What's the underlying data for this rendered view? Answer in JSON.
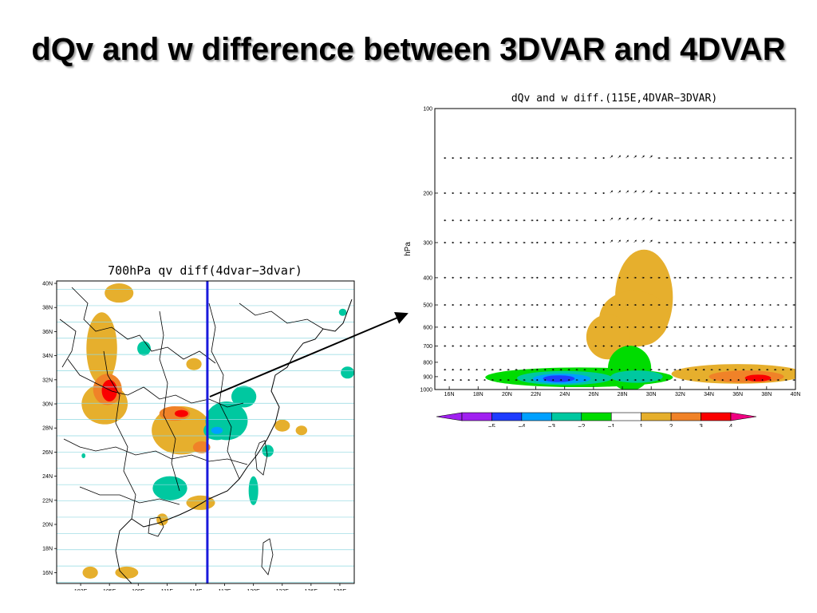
{
  "slide": {
    "title": "dQv and w difference between 3DVAR and 4DVAR"
  },
  "colors": {
    "purple": "#a020f0",
    "blue": "#1e3cff",
    "cyan": "#00a0ff",
    "teal": "#00c8a0",
    "green": "#00dc00",
    "gold": "#e6af2d",
    "orange": "#f08228",
    "red": "#fa0000",
    "pink": "#f00082",
    "grid": "#8fd8e0",
    "section_line": "#1a1adc"
  },
  "chart_data": [
    {
      "type": "heatmap",
      "title": "700hPa qv diff(4dvar−3dvar)",
      "xlabel": "",
      "ylabel": "",
      "x_ticks": [
        "102E",
        "105E",
        "108E",
        "111E",
        "114E",
        "117E",
        "120E",
        "123E",
        "126E",
        "129E"
      ],
      "x_values": [
        102,
        105,
        108,
        111,
        114,
        117,
        120,
        123,
        126,
        129
      ],
      "y_ticks": [
        "40N",
        "38N",
        "36N",
        "34N",
        "32N",
        "30N",
        "28N",
        "26N",
        "24N",
        "22N",
        "20N",
        "18N",
        "16N"
      ],
      "y_values": [
        40,
        38,
        36,
        34,
        32,
        30,
        28,
        26,
        24,
        22,
        20,
        18,
        16
      ],
      "xlim": [
        99.5,
        130.5
      ],
      "ylim": [
        15.1,
        40.2
      ],
      "section_line": {
        "lon": 115.2
      },
      "regions": [
        {
          "level": 2,
          "lon": 104.2,
          "lat": 34.6,
          "rx": 1.6,
          "ry": 3.0
        },
        {
          "level": 2,
          "lon": 104.5,
          "lat": 30.0,
          "rx": 2.4,
          "ry": 1.7
        },
        {
          "level": 3,
          "lon": 104.8,
          "lat": 31.2,
          "rx": 1.5,
          "ry": 1.3
        },
        {
          "level": 4,
          "lon": 105.0,
          "lat": 31.1,
          "rx": 0.8,
          "ry": 0.9
        },
        {
          "level": -1,
          "lon": 108.6,
          "lat": 34.6,
          "rx": 0.7,
          "ry": 0.6
        },
        {
          "level": 2,
          "lon": 113.8,
          "lat": 33.3,
          "rx": 0.8,
          "ry": 0.5
        },
        {
          "level": 2,
          "lon": 112.5,
          "lat": 27.8,
          "rx": 3.1,
          "ry": 2.0
        },
        {
          "level": 3,
          "lon": 111.8,
          "lat": 29.2,
          "rx": 1.6,
          "ry": 0.6
        },
        {
          "level": 4,
          "lon": 112.5,
          "lat": 29.2,
          "rx": 0.7,
          "ry": 0.3
        },
        {
          "level": 3,
          "lon": 114.6,
          "lat": 26.4,
          "rx": 0.9,
          "ry": 0.5
        },
        {
          "level": -1,
          "lon": 117.2,
          "lat": 28.6,
          "rx": 2.2,
          "ry": 1.6
        },
        {
          "level": -2,
          "lon": 116.2,
          "lat": 27.8,
          "rx": 1.4,
          "ry": 0.8
        },
        {
          "level": -3,
          "lon": 116.2,
          "lat": 27.8,
          "rx": 0.6,
          "ry": 0.3
        },
        {
          "level": -1,
          "lon": 119.0,
          "lat": 30.6,
          "rx": 1.3,
          "ry": 0.9
        },
        {
          "level": -1,
          "lon": 120.0,
          "lat": 22.8,
          "rx": 0.5,
          "ry": 1.2
        },
        {
          "level": -1,
          "lon": 121.5,
          "lat": 26.1,
          "rx": 0.6,
          "ry": 0.5
        },
        {
          "level": -1,
          "lon": 111.3,
          "lat": 23.0,
          "rx": 1.8,
          "ry": 1.0
        },
        {
          "level": -1,
          "lon": 102.3,
          "lat": 25.7,
          "rx": 0.2,
          "ry": 0.2
        },
        {
          "level": -1,
          "lon": 129.8,
          "lat": 32.6,
          "rx": 0.7,
          "ry": 0.5
        },
        {
          "level": -1,
          "lon": 129.3,
          "lat": 37.6,
          "rx": 0.4,
          "ry": 0.3
        },
        {
          "level": 2,
          "lon": 114.5,
          "lat": 21.8,
          "rx": 1.5,
          "ry": 0.6
        },
        {
          "level": 2,
          "lon": 110.5,
          "lat": 20.4,
          "rx": 0.6,
          "ry": 0.5
        },
        {
          "level": 2,
          "lon": 123.0,
          "lat": 28.2,
          "rx": 0.8,
          "ry": 0.5
        },
        {
          "level": 2,
          "lon": 125.0,
          "lat": 27.8,
          "rx": 0.6,
          "ry": 0.4
        },
        {
          "level": 2,
          "lon": 106.0,
          "lat": 39.2,
          "rx": 1.5,
          "ry": 0.8
        },
        {
          "level": 2,
          "lon": 103.0,
          "lat": 16.0,
          "rx": 0.8,
          "ry": 0.5
        },
        {
          "level": 2,
          "lon": 106.8,
          "lat": 16.0,
          "rx": 1.2,
          "ry": 0.5
        }
      ]
    },
    {
      "type": "heatmap",
      "title": "dQv and w diff.(115E,4DVAR−3DVAR)",
      "xlabel": "",
      "ylabel": "hPa",
      "x_ticks": [
        "16N",
        "18N",
        "20N",
        "22N",
        "24N",
        "26N",
        "28N",
        "30N",
        "32N",
        "34N",
        "36N",
        "38N",
        "40N"
      ],
      "x_values": [
        16,
        18,
        20,
        22,
        24,
        26,
        28,
        30,
        32,
        34,
        36,
        38,
        40
      ],
      "y_ticks": [
        "100",
        "200",
        "300",
        "400",
        "500",
        "600",
        "700",
        "800",
        "900",
        "1000"
      ],
      "y_values": [
        100,
        200,
        300,
        400,
        500,
        600,
        700,
        800,
        900,
        1000
      ],
      "xlim": [
        15,
        40
      ],
      "ylim": [
        1000,
        100
      ],
      "y_scale": "log",
      "regions": [
        {
          "level": 2,
          "lat": 29.5,
          "p": 470,
          "rx": 2.0,
          "ry": 0.17
        },
        {
          "level": 2,
          "lat": 28.8,
          "p": 560,
          "rx": 2.4,
          "ry": 0.1
        },
        {
          "level": 2,
          "lat": 27.0,
          "p": 650,
          "rx": 1.5,
          "ry": 0.08
        },
        {
          "level": -1,
          "lat": 25.0,
          "p": 905,
          "rx": 6.5,
          "ry": 0.035
        },
        {
          "level": -1,
          "lat": 28.5,
          "p": 840,
          "rx": 1.5,
          "ry": 0.08
        },
        {
          "level": -2,
          "lat": 24.0,
          "p": 910,
          "rx": 3.3,
          "ry": 0.025
        },
        {
          "level": -2,
          "lat": 29.0,
          "p": 900,
          "rx": 1.8,
          "ry": 0.022
        },
        {
          "level": -3,
          "lat": 23.8,
          "p": 915,
          "rx": 2.0,
          "ry": 0.018
        },
        {
          "level": -4,
          "lat": 23.6,
          "p": 915,
          "rx": 1.1,
          "ry": 0.012
        },
        {
          "level": 2,
          "lat": 36.0,
          "p": 880,
          "rx": 4.6,
          "ry": 0.035
        },
        {
          "level": 3,
          "lat": 36.6,
          "p": 900,
          "rx": 2.6,
          "ry": 0.022
        },
        {
          "level": 4,
          "lat": 37.4,
          "p": 910,
          "rx": 0.9,
          "ry": 0.012
        }
      ],
      "vector_rows": [
        150,
        200,
        250,
        300,
        400,
        500,
        600,
        700,
        850,
        925
      ]
    }
  ],
  "colorbar": {
    "labels": [
      "−5",
      "−4",
      "−3",
      "−2",
      "−1",
      "1",
      "2",
      "3",
      "4"
    ],
    "colors": [
      "#a020f0",
      "#1e3cff",
      "#00a0ff",
      "#00c8a0",
      "#00dc00",
      "#ffffff",
      "#e6af2d",
      "#f08228",
      "#fa0000"
    ]
  }
}
